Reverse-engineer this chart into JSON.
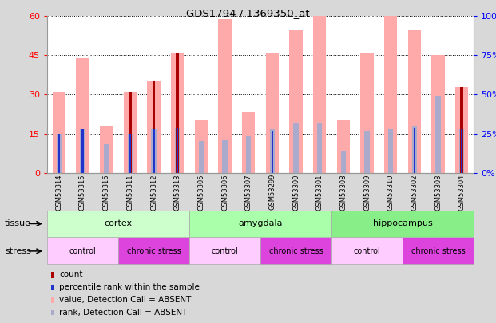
{
  "title": "GDS1794 / 1369350_at",
  "samples": [
    "GSM53314",
    "GSM53315",
    "GSM53316",
    "GSM53311",
    "GSM53312",
    "GSM53313",
    "GSM53305",
    "GSM53306",
    "GSM53307",
    "GSM53299",
    "GSM53300",
    "GSM53301",
    "GSM53308",
    "GSM53309",
    "GSM53310",
    "GSM53302",
    "GSM53303",
    "GSM53304"
  ],
  "count_values": [
    0,
    0,
    0,
    31,
    35,
    46,
    0,
    0,
    0,
    0,
    0,
    0,
    0,
    0,
    0,
    0,
    0,
    33
  ],
  "percentile_values": [
    25,
    28,
    0,
    25,
    28,
    29,
    0,
    0,
    0,
    27,
    0,
    0,
    0,
    0,
    0,
    29,
    0,
    28
  ],
  "pink_bar_values": [
    31,
    44,
    18,
    31,
    35,
    46,
    20,
    59,
    23,
    46,
    55,
    60,
    20,
    46,
    60,
    55,
    45,
    33
  ],
  "blue_bar_values": [
    25,
    28,
    18,
    25,
    28,
    29,
    20,
    21,
    23,
    28,
    32,
    32,
    14,
    27,
    28,
    30,
    49,
    28
  ],
  "ylim_left": [
    0,
    60
  ],
  "ylim_right": [
    0,
    100
  ],
  "yticks_left": [
    0,
    15,
    30,
    45,
    60
  ],
  "yticks_right": [
    0,
    25,
    50,
    75,
    100
  ],
  "ytick_labels_left": [
    "0",
    "15",
    "30",
    "45",
    "60"
  ],
  "ytick_labels_right": [
    "0%",
    "25%",
    "50%",
    "75%",
    "100%"
  ],
  "count_color": "#aa0000",
  "percentile_color": "#2233cc",
  "pink_color": "#ffaaaa",
  "blue_color": "#aaaacc",
  "tissue_color_cortex": "#ccffcc",
  "tissue_color_amygdala": "#aaffaa",
  "tissue_color_hippocampus": "#88ee88",
  "control_color": "#ffccff",
  "chronic_color": "#dd44dd",
  "fig_bg": "#d8d8d8",
  "plot_bg": "#ffffff",
  "xticklabel_bg": "#e0e0e0"
}
